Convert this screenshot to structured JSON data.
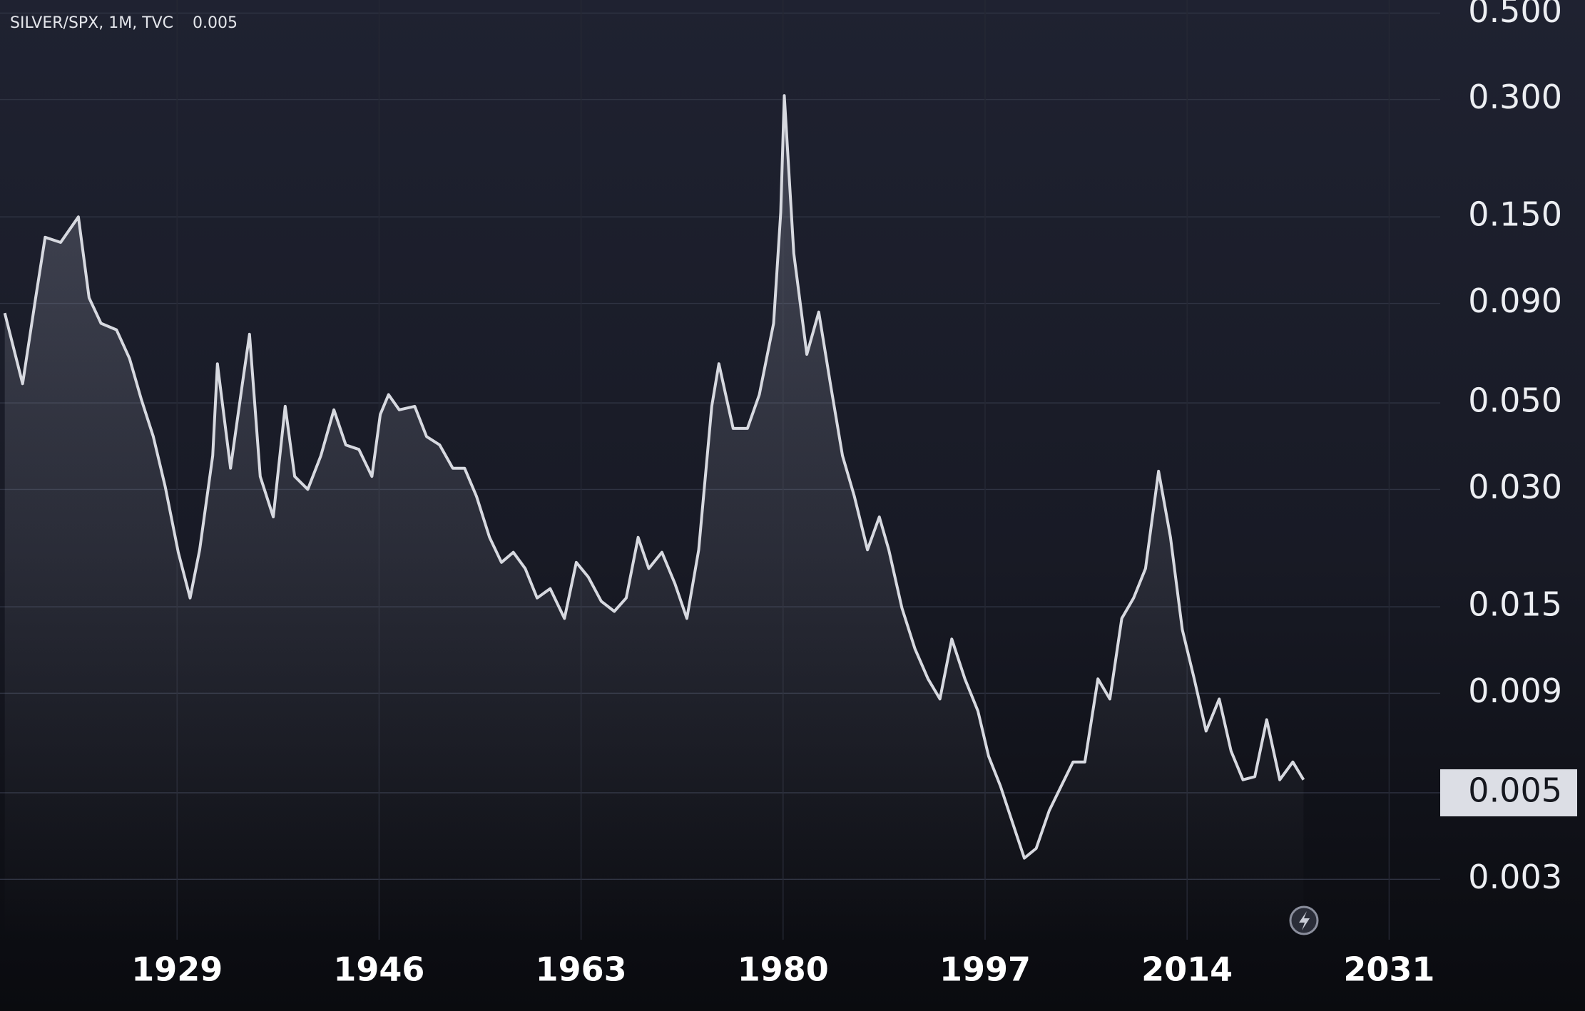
{
  "chart_data": {
    "type": "line",
    "title": "SILVER/SPX, 1M, TVC",
    "current_value": 0.005,
    "current_value_label": "0.005",
    "log_scale": true,
    "grid": true,
    "color": "#d7d9e0",
    "xlim": [
      1914.1,
      2035.3
    ],
    "xticks": [
      1929,
      1946,
      1963,
      1980,
      1997,
      2014,
      2031
    ],
    "ylim": [
      0.0021,
      0.54
    ],
    "yticks": [
      {
        "value": 0.5,
        "label": "0.500"
      },
      {
        "value": 0.3,
        "label": "0.300"
      },
      {
        "value": 0.15,
        "label": "0.150"
      },
      {
        "value": 0.09,
        "label": "0.090"
      },
      {
        "value": 0.05,
        "label": "0.050"
      },
      {
        "value": 0.03,
        "label": "0.030"
      },
      {
        "value": 0.015,
        "label": "0.015"
      },
      {
        "value": 0.009,
        "label": "0.009"
      },
      {
        "value": 0.005,
        "label": "0.005"
      },
      {
        "value": 0.003,
        "label": "0.003"
      }
    ],
    "x": [
      1914.5,
      1916.0,
      1917.1,
      1917.9,
      1919.2,
      1920.7,
      1921.6,
      1922.6,
      1923.9,
      1925.0,
      1926.0,
      1927.0,
      1928.0,
      1929.1,
      1930.1,
      1930.9,
      1932.0,
      1932.4,
      1933.5,
      1934.5,
      1935.1,
      1936.0,
      1937.1,
      1938.1,
      1938.9,
      1940.0,
      1941.1,
      1942.2,
      1943.2,
      1944.3,
      1945.4,
      1946.1,
      1946.8,
      1947.7,
      1949.0,
      1950.0,
      1951.1,
      1952.2,
      1953.2,
      1954.2,
      1955.3,
      1956.3,
      1957.3,
      1958.3,
      1959.3,
      1960.4,
      1961.6,
      1962.6,
      1963.6,
      1964.7,
      1965.8,
      1966.8,
      1967.8,
      1968.7,
      1969.8,
      1970.9,
      1971.9,
      1972.9,
      1974.0,
      1974.6,
      1975.8,
      1977.0,
      1978.0,
      1979.2,
      1979.8,
      1980.1,
      1980.9,
      1982.0,
      1983.0,
      1984.0,
      1985.0,
      1986.0,
      1987.1,
      1988.1,
      1988.9,
      1990.0,
      1991.1,
      1992.2,
      1993.2,
      1994.2,
      1995.3,
      1996.4,
      1997.3,
      1998.3,
      1999.3,
      2000.3,
      2001.3,
      2002.4,
      2003.4,
      2004.4,
      2005.4,
      2006.5,
      2007.5,
      2008.5,
      2009.5,
      2010.5,
      2011.6,
      2012.6,
      2013.6,
      2014.6,
      2015.6,
      2016.7,
      2017.7,
      2018.7,
      2019.7,
      2020.7,
      2021.8,
      2022.9,
      2023.8
    ],
    "values": [
      0.085,
      0.056,
      0.093,
      0.133,
      0.129,
      0.15,
      0.093,
      0.08,
      0.077,
      0.065,
      0.051,
      0.041,
      0.0305,
      0.0207,
      0.0158,
      0.021,
      0.0366,
      0.063,
      0.034,
      0.056,
      0.075,
      0.0324,
      0.0255,
      0.049,
      0.0324,
      0.03,
      0.0366,
      0.048,
      0.039,
      0.038,
      0.0324,
      0.0467,
      0.0525,
      0.048,
      0.049,
      0.041,
      0.039,
      0.034,
      0.034,
      0.0288,
      0.0226,
      0.0195,
      0.0207,
      0.0188,
      0.0158,
      0.0167,
      0.014,
      0.0195,
      0.0179,
      0.0155,
      0.0146,
      0.0158,
      0.0226,
      0.0188,
      0.0207,
      0.0172,
      0.014,
      0.021,
      0.049,
      0.063,
      0.043,
      0.043,
      0.0525,
      0.08,
      0.154,
      0.307,
      0.121,
      0.0666,
      0.0855,
      0.0556,
      0.0366,
      0.0288,
      0.021,
      0.0255,
      0.021,
      0.0149,
      0.0117,
      0.0098,
      0.0087,
      0.0124,
      0.0098,
      0.0081,
      0.0062,
      0.0052,
      0.0042,
      0.0034,
      0.0036,
      0.0045,
      0.0052,
      0.006,
      0.006,
      0.0098,
      0.0087,
      0.014,
      0.0158,
      0.0188,
      0.0334,
      0.0226,
      0.0131,
      0.0098,
      0.0072,
      0.0087,
      0.0064,
      0.0054,
      0.0055,
      0.0077,
      0.0054,
      0.006,
      0.0054
    ]
  }
}
